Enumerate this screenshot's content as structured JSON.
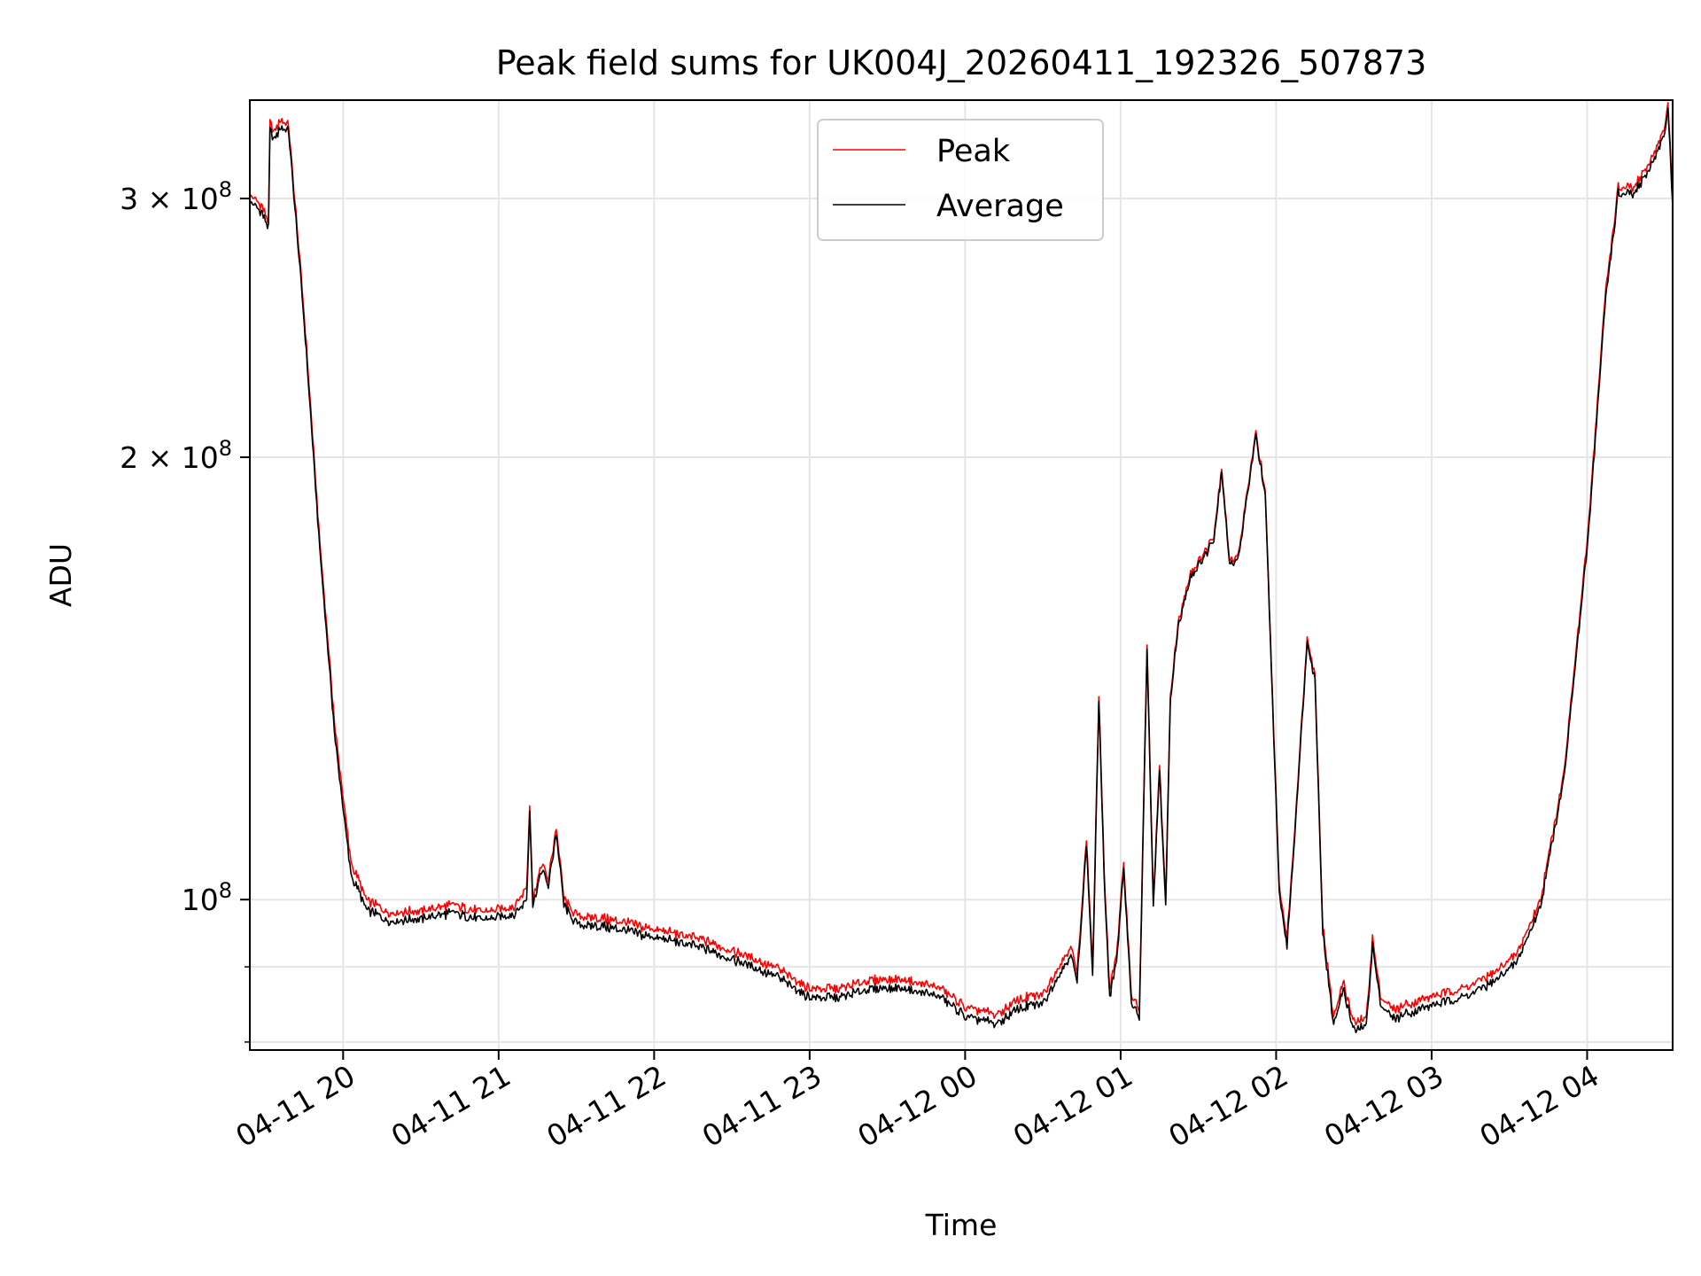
{
  "chart_data": {
    "type": "line",
    "title": "Peak field sums for UK004J_20260411_192326_507873",
    "xlabel": "Time",
    "ylabel": "ADU",
    "yscale": "log",
    "grid": true,
    "legend_position": "top-center",
    "xlim": [
      -0.6,
      8.55
    ],
    "ylim": [
      79000000,
      350000000
    ],
    "x_unit": "hours after 2026-04-11 20:00",
    "x_ticks": [
      {
        "value": 0,
        "label": "04-11 20"
      },
      {
        "value": 1,
        "label": "04-11 21"
      },
      {
        "value": 2,
        "label": "04-11 22"
      },
      {
        "value": 3,
        "label": "04-11 23"
      },
      {
        "value": 4,
        "label": "04-12 00"
      },
      {
        "value": 5,
        "label": "04-12 01"
      },
      {
        "value": 6,
        "label": "04-12 02"
      },
      {
        "value": 7,
        "label": "04-12 03"
      },
      {
        "value": 8,
        "label": "04-12 04"
      }
    ],
    "y_ticks": [
      {
        "value": 100000000,
        "base": "10",
        "exp": "8"
      },
      {
        "value": 200000000,
        "base": "2 × 10",
        "exp": "8"
      },
      {
        "value": 300000000,
        "base": "3 × 10",
        "exp": "8"
      }
    ],
    "y_minor_ticks": [
      80000000,
      90000000
    ],
    "series": [
      {
        "name": "Peak",
        "color": "#ff0000",
        "points": [
          [
            -0.6,
            302000000.0
          ],
          [
            -0.52,
            296000000.0
          ],
          [
            -0.48,
            289000000.0
          ],
          [
            -0.47,
            338000000.0
          ],
          [
            -0.44,
            333000000.0
          ],
          [
            -0.4,
            340000000.0
          ],
          [
            -0.35,
            336000000.0
          ],
          [
            -0.25,
            250000000.0
          ],
          [
            -0.15,
            175000000.0
          ],
          [
            -0.05,
            130000000.0
          ],
          [
            0.05,
            106000000.0
          ],
          [
            0.15,
            100000000.0
          ],
          [
            0.3,
            98000000.0
          ],
          [
            0.5,
            98200000.0
          ],
          [
            0.7,
            99200000.0
          ],
          [
            0.9,
            98000000.0
          ],
          [
            1.1,
            99000000.0
          ],
          [
            1.18,
            102000000.0
          ],
          [
            1.2,
            116000000.0
          ],
          [
            1.22,
            100000000.0
          ],
          [
            1.28,
            106000000.0
          ],
          [
            1.32,
            103000000.0
          ],
          [
            1.37,
            112000000.0
          ],
          [
            1.42,
            100000000.0
          ],
          [
            1.5,
            97500000.0
          ],
          [
            1.7,
            97000000.0
          ],
          [
            2.0,
            95500000.0
          ],
          [
            2.3,
            94000000.0
          ],
          [
            2.6,
            91500000.0
          ],
          [
            2.8,
            89700000.0
          ],
          [
            3.0,
            87000000.0
          ],
          [
            3.2,
            87000000.0
          ],
          [
            3.4,
            88200000.0
          ],
          [
            3.6,
            88200000.0
          ],
          [
            3.85,
            87000000.0
          ],
          [
            4.0,
            84500000.0
          ],
          [
            4.2,
            83500000.0
          ],
          [
            4.35,
            85500000.0
          ],
          [
            4.5,
            86200000.0
          ],
          [
            4.6,
            90000000.0
          ],
          [
            4.68,
            93000000.0
          ],
          [
            4.72,
            89000000.0
          ],
          [
            4.78,
            110000000.0
          ],
          [
            4.82,
            90000000.0
          ],
          [
            4.86,
            138000000.0
          ],
          [
            4.9,
            100000000.0
          ],
          [
            4.93,
            87000000.0
          ],
          [
            4.98,
            93000000.0
          ],
          [
            5.02,
            106000000.0
          ],
          [
            5.07,
            86000000.0
          ],
          [
            5.12,
            84000000.0
          ],
          [
            5.17,
            149000000.0
          ],
          [
            5.21,
            100000000.0
          ],
          [
            5.25,
            123000000.0
          ],
          [
            5.29,
            100000000.0
          ],
          [
            5.32,
            138000000.0
          ],
          [
            5.37,
            154000000.0
          ],
          [
            5.45,
            167000000.0
          ],
          [
            5.55,
            173000000.0
          ],
          [
            5.6,
            177000000.0
          ],
          [
            5.65,
            197000000.0
          ],
          [
            5.7,
            170000000.0
          ],
          [
            5.76,
            172000000.0
          ],
          [
            5.82,
            191000000.0
          ],
          [
            5.87,
            208000000.0
          ],
          [
            5.93,
            189000000.0
          ],
          [
            5.97,
            144000000.0
          ],
          [
            6.02,
            102000000.0
          ],
          [
            6.07,
            94000000.0
          ],
          [
            6.12,
            112000000.0
          ],
          [
            6.2,
            151000000.0
          ],
          [
            6.25,
            142000000.0
          ],
          [
            6.3,
            96000000.0
          ],
          [
            6.37,
            83000000.0
          ],
          [
            6.43,
            88000000.0
          ],
          [
            6.5,
            82500000.0
          ],
          [
            6.58,
            83000000.0
          ],
          [
            6.62,
            94000000.0
          ],
          [
            6.67,
            86000000.0
          ],
          [
            6.75,
            84200000.0
          ],
          [
            7.0,
            86000000.0
          ],
          [
            7.2,
            87000000.0
          ],
          [
            7.4,
            89000000.0
          ],
          [
            7.55,
            92000000.0
          ],
          [
            7.7,
            100000000.0
          ],
          [
            7.85,
            122000000.0
          ],
          [
            8.0,
            175000000.0
          ],
          [
            8.12,
            260000000.0
          ],
          [
            8.2,
            305000000.0
          ],
          [
            8.3,
            305000000.0
          ],
          [
            8.4,
            317000000.0
          ],
          [
            8.5,
            335000000.0
          ],
          [
            8.52,
            350000000.0
          ],
          [
            8.55,
            300000000.0
          ]
        ]
      },
      {
        "name": "Average",
        "color": "#000000",
        "points": [
          [
            -0.6,
            299000000.0
          ],
          [
            -0.52,
            293000000.0
          ],
          [
            -0.48,
            286000000.0
          ],
          [
            -0.47,
            334000000.0
          ],
          [
            -0.44,
            329000000.0
          ],
          [
            -0.4,
            336000000.0
          ],
          [
            -0.35,
            333000000.0
          ],
          [
            -0.25,
            247000000.0
          ],
          [
            -0.15,
            173000000.0
          ],
          [
            -0.05,
            128000000.0
          ],
          [
            0.05,
            104000000.0
          ],
          [
            0.15,
            98500000.0
          ],
          [
            0.3,
            96700000.0
          ],
          [
            0.5,
            97000000.0
          ],
          [
            0.7,
            98000000.0
          ],
          [
            0.9,
            96800000.0
          ],
          [
            1.1,
            97800000.0
          ],
          [
            1.18,
            100000000.0
          ],
          [
            1.2,
            115000000.0
          ],
          [
            1.22,
            99000000.0
          ],
          [
            1.28,
            105000000.0
          ],
          [
            1.32,
            102000000.0
          ],
          [
            1.37,
            111000000.0
          ],
          [
            1.42,
            99000000.0
          ],
          [
            1.5,
            96200000.0
          ],
          [
            1.7,
            95800000.0
          ],
          [
            2.0,
            94300000.0
          ],
          [
            2.3,
            92800000.0
          ],
          [
            2.6,
            90300000.0
          ],
          [
            2.8,
            88500000.0
          ],
          [
            3.0,
            85800000.0
          ],
          [
            3.2,
            85800000.0
          ],
          [
            3.4,
            87000000.0
          ],
          [
            3.6,
            87000000.0
          ],
          [
            3.85,
            85800000.0
          ],
          [
            4.0,
            83300000.0
          ],
          [
            4.2,
            82300000.0
          ],
          [
            4.35,
            84300000.0
          ],
          [
            4.5,
            85000000.0
          ],
          [
            4.6,
            88800000.0
          ],
          [
            4.68,
            91800000.0
          ],
          [
            4.72,
            87800000.0
          ],
          [
            4.78,
            109000000.0
          ],
          [
            4.82,
            88800000.0
          ],
          [
            4.86,
            137000000.0
          ],
          [
            4.9,
            99000000.0
          ],
          [
            4.93,
            86000000.0
          ],
          [
            4.98,
            92000000.0
          ],
          [
            5.02,
            105000000.0
          ],
          [
            5.07,
            85000000.0
          ],
          [
            5.12,
            83000000.0
          ],
          [
            5.17,
            148000000.0
          ],
          [
            5.21,
            99000000.0
          ],
          [
            5.25,
            122000000.0
          ],
          [
            5.29,
            99000000.0
          ],
          [
            5.32,
            137000000.0
          ],
          [
            5.37,
            153000000.0
          ],
          [
            5.45,
            166000000.0
          ],
          [
            5.55,
            172000000.0
          ],
          [
            5.6,
            176000000.0
          ],
          [
            5.65,
            196000000.0
          ],
          [
            5.7,
            169000000.0
          ],
          [
            5.76,
            171000000.0
          ],
          [
            5.82,
            190000000.0
          ],
          [
            5.87,
            207000000.0
          ],
          [
            5.93,
            188000000.0
          ],
          [
            5.97,
            143000000.0
          ],
          [
            6.02,
            101000000.0
          ],
          [
            6.07,
            93000000.0
          ],
          [
            6.12,
            111000000.0
          ],
          [
            6.2,
            150000000.0
          ],
          [
            6.25,
            141000000.0
          ],
          [
            6.3,
            95000000.0
          ],
          [
            6.37,
            82000000.0
          ],
          [
            6.43,
            87000000.0
          ],
          [
            6.5,
            81500000.0
          ],
          [
            6.58,
            82000000.0
          ],
          [
            6.62,
            93000000.0
          ],
          [
            6.67,
            85000000.0
          ],
          [
            6.75,
            83000000.0
          ],
          [
            7.0,
            84800000.0
          ],
          [
            7.2,
            85800000.0
          ],
          [
            7.4,
            87800000.0
          ],
          [
            7.55,
            90800000.0
          ],
          [
            7.7,
            99000000.0
          ],
          [
            7.85,
            121000000.0
          ],
          [
            8.0,
            173000000.0
          ],
          [
            8.12,
            257000000.0
          ],
          [
            8.2,
            302000000.0
          ],
          [
            8.3,
            302000000.0
          ],
          [
            8.4,
            314000000.0
          ],
          [
            8.5,
            332000000.0
          ],
          [
            8.52,
            347000000.0
          ],
          [
            8.55,
            297000000.0
          ]
        ]
      }
    ]
  }
}
